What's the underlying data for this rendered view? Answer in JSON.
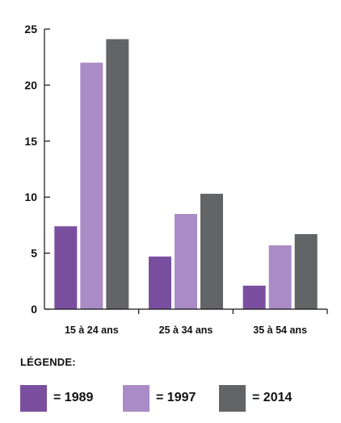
{
  "chart_data": {
    "type": "bar",
    "categories": [
      "15 à 24 ans",
      "25 à 34 ans",
      "35 à 54 ans"
    ],
    "series": [
      {
        "name": "1989",
        "values": [
          7.4,
          4.7,
          2.1
        ],
        "color": "#7b4fa0"
      },
      {
        "name": "1997",
        "values": [
          22.0,
          8.5,
          5.7
        ],
        "color": "#a98bc6"
      },
      {
        "name": "2014",
        "values": [
          24.1,
          10.3,
          6.7
        ],
        "color": "#636466"
      }
    ],
    "yticks": [
      0,
      5,
      10,
      15,
      20,
      25
    ],
    "ylim": [
      0,
      25
    ],
    "legend_position": "bottom"
  },
  "legend": {
    "title": "LÉGENDE:",
    "items": [
      {
        "label": "= 1989"
      },
      {
        "label": "= 1997"
      },
      {
        "label": "= 2014"
      }
    ]
  }
}
